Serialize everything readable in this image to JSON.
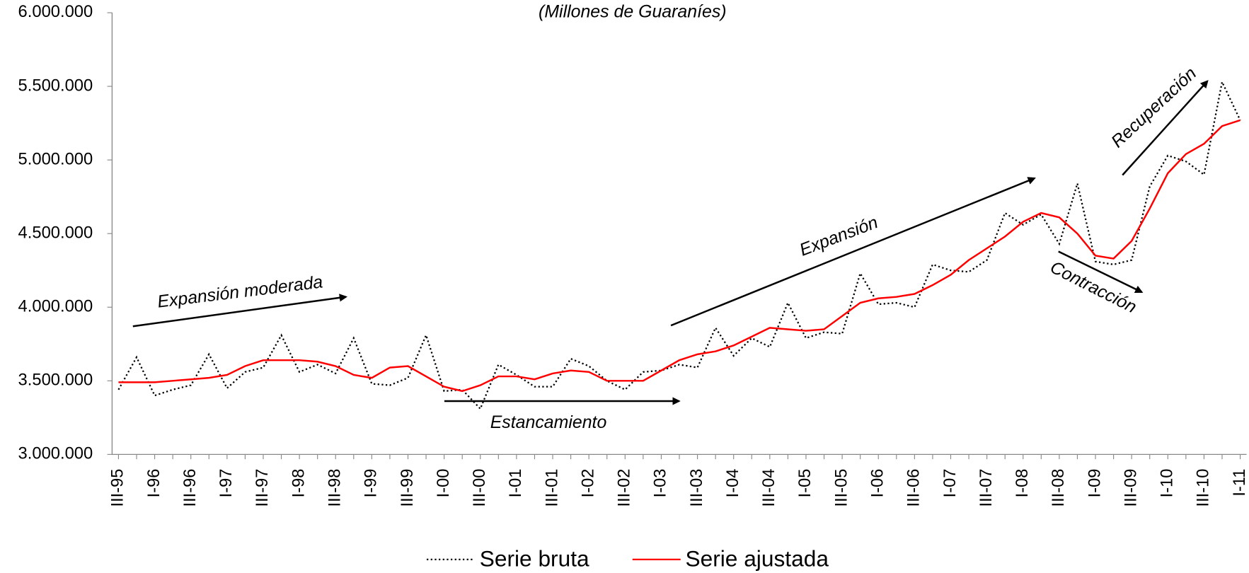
{
  "chart_data": {
    "type": "line",
    "title": "(Millones de Guaraníes)",
    "categories": [
      "III-95",
      null,
      "I-96",
      null,
      "III-96",
      null,
      "I-97",
      null,
      "III-97",
      null,
      "I-98",
      null,
      "III-98",
      null,
      "I-99",
      null,
      "III-99",
      null,
      "I-00",
      null,
      "III-00",
      null,
      "I-01",
      null,
      "III-01",
      null,
      "I-02",
      null,
      "III-02",
      null,
      "I-03",
      null,
      "III-03",
      null,
      "I-04",
      null,
      "III-04",
      null,
      "I-05",
      null,
      "III-05",
      null,
      "I-06",
      null,
      "III-06",
      null,
      "I-07",
      null,
      "III-07",
      null,
      "I-08",
      null,
      "III-08",
      null,
      "I-09",
      null,
      "III-09",
      null,
      "I-10",
      null,
      "III-10",
      null,
      "I-11"
    ],
    "series": [
      {
        "name": "Serie bruta",
        "color": "#000000",
        "dash": true,
        "values": [
          3440000,
          3660000,
          3400000,
          3440000,
          3470000,
          3680000,
          3450000,
          3560000,
          3590000,
          3810000,
          3560000,
          3610000,
          3550000,
          3790000,
          3480000,
          3470000,
          3520000,
          3810000,
          3430000,
          3440000,
          3310000,
          3610000,
          3540000,
          3460000,
          3460000,
          3650000,
          3600000,
          3500000,
          3440000,
          3560000,
          3570000,
          3610000,
          3590000,
          3860000,
          3670000,
          3790000,
          3730000,
          4030000,
          3790000,
          3830000,
          3820000,
          4230000,
          4020000,
          4030000,
          4000000,
          4290000,
          4250000,
          4240000,
          4320000,
          4640000,
          4560000,
          4630000,
          4430000,
          4840000,
          4310000,
          4290000,
          4320000,
          4820000,
          5030000,
          4990000,
          4900000,
          5530000,
          5270000
        ]
      },
      {
        "name": "Serie ajustada",
        "color": "#ff0000",
        "dash": false,
        "values": [
          3490000,
          3490000,
          3490000,
          3500000,
          3510000,
          3520000,
          3540000,
          3600000,
          3640000,
          3640000,
          3640000,
          3630000,
          3600000,
          3540000,
          3520000,
          3590000,
          3600000,
          3530000,
          3460000,
          3430000,
          3470000,
          3530000,
          3530000,
          3510000,
          3550000,
          3570000,
          3560000,
          3500000,
          3500000,
          3500000,
          3570000,
          3640000,
          3680000,
          3700000,
          3740000,
          3800000,
          3860000,
          3850000,
          3840000,
          3850000,
          3940000,
          4030000,
          4060000,
          4070000,
          4090000,
          4150000,
          4220000,
          4320000,
          4400000,
          4480000,
          4580000,
          4640000,
          4610000,
          4500000,
          4350000,
          4330000,
          4450000,
          4670000,
          4910000,
          5040000,
          5110000,
          5230000,
          5270000
        ]
      }
    ],
    "ylim": [
      3000000,
      6000000
    ],
    "yticks": [
      {
        "value": 3000000,
        "label": "3.000.000"
      },
      {
        "value": 3500000,
        "label": "3.500.000"
      },
      {
        "value": 4000000,
        "label": "4.000.000"
      },
      {
        "value": 4500000,
        "label": "4.500.000"
      },
      {
        "value": 5000000,
        "label": "5.000.000"
      },
      {
        "value": 5500000,
        "label": "5.500.000"
      },
      {
        "value": 6000000,
        "label": "6.000.000"
      }
    ],
    "annotations": [
      "Expansión moderada",
      "Estancamiento",
      "Expansión",
      "Contracción",
      "Recuperación"
    ],
    "legend": "bottom"
  }
}
